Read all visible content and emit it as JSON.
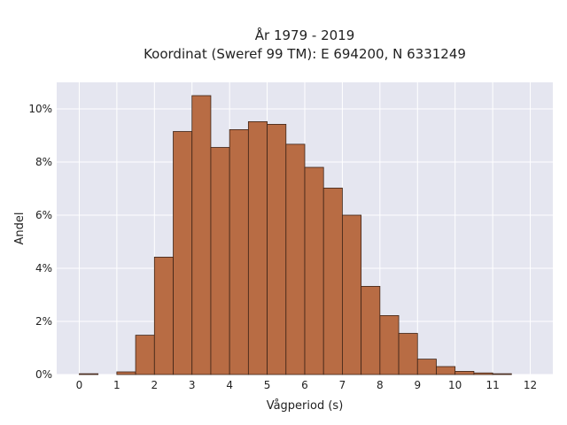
{
  "chart_data": {
    "type": "bar",
    "title_lines": [
      "År 1979 - 2019",
      "Koordinat (Sweref 99 TM): E 694200, N 6331249"
    ],
    "xlabel": "Vågperiod (s)",
    "ylabel": "Andel",
    "bin_width": 0.5,
    "x": [
      0,
      0.5,
      1,
      1.5,
      2,
      2.5,
      3,
      3.5,
      4,
      4.5,
      5,
      5.5,
      6,
      6.5,
      7,
      7.5,
      8,
      8.5,
      9,
      9.5,
      10,
      10.5,
      11,
      11.5
    ],
    "values": [
      0.03,
      0.0,
      0.1,
      1.48,
      4.42,
      9.15,
      10.5,
      8.55,
      9.22,
      9.52,
      9.42,
      8.67,
      7.8,
      7.02,
      6.0,
      3.32,
      2.22,
      1.55,
      0.58,
      0.3,
      0.12,
      0.06,
      0.03,
      0.0
    ],
    "xlim": [
      -0.6,
      12.6
    ],
    "ylim": [
      0,
      11
    ],
    "xticks": [
      0,
      1,
      2,
      3,
      4,
      5,
      6,
      7,
      8,
      9,
      10,
      11,
      12
    ],
    "xtick_labels": [
      "0",
      "1",
      "2",
      "3",
      "4",
      "5",
      "6",
      "7",
      "8",
      "9",
      "10",
      "11",
      "12"
    ],
    "yticks": [
      0,
      2,
      4,
      6,
      8,
      10
    ],
    "ytick_labels": [
      "0%",
      "2%",
      "4%",
      "6%",
      "8%",
      "10%"
    ],
    "grid": true,
    "colors": {
      "bar_fill": "#b5653a",
      "bar_edge": "#3d2418",
      "plot_bg": "#e5e6f0",
      "grid": "#ffffff"
    }
  }
}
